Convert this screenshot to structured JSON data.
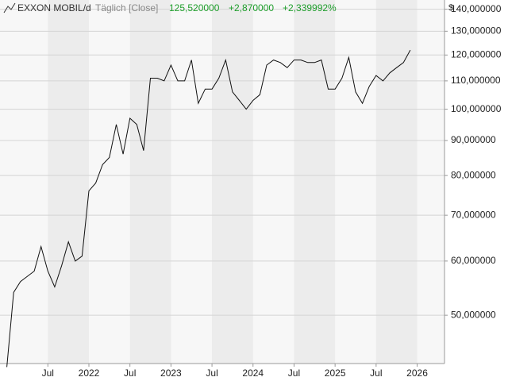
{
  "chart_data": {
    "type": "line",
    "scale": "log",
    "title": "EXXON MOBIL/d",
    "subtitle": "Täglich [Close]",
    "last_value": "125,520000",
    "change": "+2,870000",
    "change_percent": "+2,339992%",
    "y_unit": "$",
    "color": "#111111",
    "change_color": "#1f9e2c",
    "x": [
      "2021-01",
      "2021-02",
      "2021-03",
      "2021-04",
      "2021-05",
      "2021-06",
      "2021-07",
      "2021-08",
      "2021-09",
      "2021-10",
      "2021-11",
      "2021-12",
      "2022-01",
      "2022-02",
      "2022-03",
      "2022-04",
      "2022-05",
      "2022-06",
      "2022-07",
      "2022-08",
      "2022-09",
      "2022-10",
      "2022-11",
      "2022-12",
      "2023-01",
      "2023-02",
      "2023-03",
      "2023-04",
      "2023-05",
      "2023-06",
      "2023-07",
      "2023-08",
      "2023-09",
      "2023-10",
      "2023-11",
      "2023-12",
      "2024-01",
      "2024-02",
      "2024-03",
      "2024-04",
      "2024-05",
      "2024-06",
      "2024-07",
      "2024-08",
      "2024-09",
      "2024-10",
      "2024-11",
      "2024-12",
      "2025-01",
      "2025-02",
      "2025-03",
      "2025-04",
      "2025-05",
      "2025-06",
      "2025-07",
      "2025-08",
      "2025-09",
      "2025-10",
      "2025-11",
      "2025-12"
    ],
    "values": [
      42,
      54,
      56,
      57,
      58,
      63,
      58,
      55,
      59,
      64,
      60,
      61,
      76,
      78,
      83,
      85,
      95,
      86,
      97,
      95,
      87,
      111,
      111,
      110,
      116,
      110,
      110,
      118,
      102,
      107,
      107,
      111,
      118,
      106,
      103,
      100,
      103,
      105,
      116,
      118,
      117,
      115,
      118,
      118,
      117,
      117,
      118,
      107,
      107,
      111,
      119,
      106,
      102,
      108,
      112,
      110,
      113,
      115,
      117,
      122
    ],
    "xlim": [
      "2020-12",
      "2026-05"
    ],
    "xticks": [
      {
        "value": "2021-07",
        "label": "Jul"
      },
      {
        "value": "2022-01",
        "label": "2022"
      },
      {
        "value": "2022-07",
        "label": "Jul"
      },
      {
        "value": "2023-01",
        "label": "2023"
      },
      {
        "value": "2023-07",
        "label": "Jul"
      },
      {
        "value": "2024-01",
        "label": "2024"
      },
      {
        "value": "2024-07",
        "label": "Jul"
      },
      {
        "value": "2025-01",
        "label": "2025"
      },
      {
        "value": "2025-07",
        "label": "Jul"
      },
      {
        "value": "2026-01",
        "label": "2026"
      }
    ],
    "ylim": [
      42.5,
      144.4
    ],
    "yticks": [
      {
        "value": 50,
        "label": "50,000000"
      },
      {
        "value": 60,
        "label": "60,000000"
      },
      {
        "value": 70,
        "label": "70,000000"
      },
      {
        "value": 80,
        "label": "80,000000"
      },
      {
        "value": 90,
        "label": "90,000000"
      },
      {
        "value": 100,
        "label": "100,000000"
      },
      {
        "value": 110,
        "label": "110,000000"
      },
      {
        "value": 120,
        "label": "120,000000"
      },
      {
        "value": 130,
        "label": "130,000000"
      },
      {
        "value": 140,
        "label": "140,000000"
      }
    ],
    "grid": true
  }
}
